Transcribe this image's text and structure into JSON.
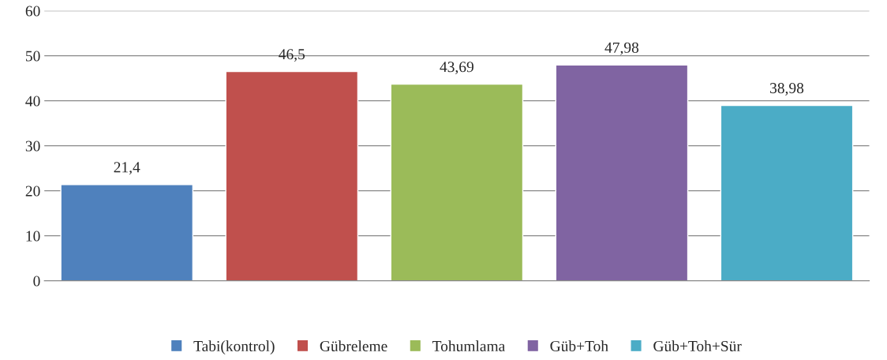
{
  "chart_data": {
    "type": "bar",
    "categories": [
      null,
      null,
      null,
      null,
      null
    ],
    "series": [
      {
        "name": "Tabi(kontrol)",
        "color": "#4f81bd",
        "values": [
          21.4,
          null,
          null,
          null,
          null
        ],
        "value_labels": [
          "21,4",
          null,
          null,
          null,
          null
        ]
      },
      {
        "name": "Gübreleme",
        "color": "#c0504d",
        "values": [
          null,
          46.5,
          null,
          null,
          null
        ],
        "value_labels": [
          null,
          "46,5",
          null,
          null,
          null
        ]
      },
      {
        "name": "Tohumlama",
        "color": "#9bbb59",
        "values": [
          null,
          null,
          43.69,
          null,
          null
        ],
        "value_labels": [
          null,
          null,
          "43,69",
          null,
          null
        ]
      },
      {
        "name": "Güb+Toh",
        "color": "#8064a2",
        "values": [
          null,
          null,
          null,
          47.98,
          null
        ],
        "value_labels": [
          null,
          null,
          null,
          "47,98",
          null
        ]
      },
      {
        "name": "Güb+Toh+Sür",
        "color": "#4bacc6",
        "values": [
          null,
          null,
          null,
          null,
          38.98
        ],
        "value_labels": [
          null,
          null,
          null,
          null,
          "38,98"
        ]
      }
    ],
    "ylim": [
      0,
      60
    ],
    "yticks": [
      0,
      10,
      20,
      30,
      40,
      50,
      60
    ],
    "grid": "y",
    "legend": "bottom"
  }
}
